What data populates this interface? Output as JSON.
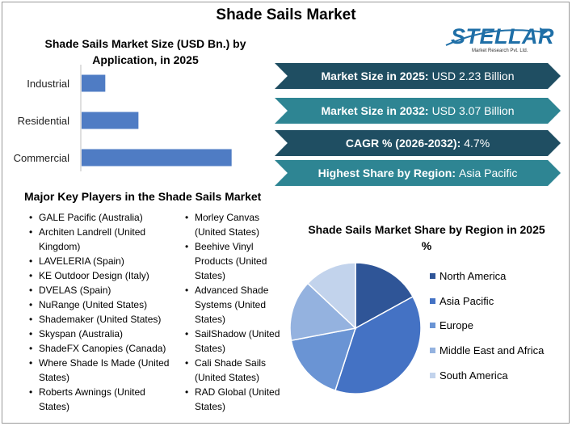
{
  "title": "Shade Sails Market",
  "logo": {
    "text": "STELLAR",
    "subtitle": "Market Research Pvt. Ltd."
  },
  "bar_chart_title": "Shade Sails Market Size (USD Bn.) by Application, in 2025",
  "banners": [
    {
      "label": "Market Size in 2025:",
      "value": "USD 2.23 Billion",
      "color": "#1f4e62"
    },
    {
      "label": "Market Size in 2032:",
      "value": "USD 3.07 Billion",
      "color": "#2e8593"
    },
    {
      "label": "CAGR % (2026-2032):",
      "value": "4.7%",
      "color": "#1f4e62"
    },
    {
      "label": "Highest Share by Region:",
      "value": "Asia Pacific",
      "color": "#2e8593"
    }
  ],
  "players_title": "Major Key Players in the Shade Sails Market",
  "players_col1": [
    "GALE Pacific (Australia)",
    "Architen Landrell (United Kingdom)",
    "LAVELERIA (Spain)",
    "KE Outdoor Design (Italy)",
    "DVELAS (Spain)",
    "NuRange (United States)",
    "Shademaker (United States)",
    "Skyspan (Australia)",
    "ShadeFX Canopies (Canada)",
    "Where Shade Is Made (United States)",
    "Roberts Awnings (United States)"
  ],
  "players_col2": [
    "Morley Canvas (United States)",
    "Beehive Vinyl Products (United States)",
    "Advanced Shade Systems (United States)",
    "SailShadow (United States)",
    "Cali Shade Sails (United States)",
    "RAD Global (United States)"
  ],
  "pie_chart_title": "Shade Sails Market Share by Region in 2025 %",
  "chart_data": [
    {
      "type": "bar",
      "orientation": "horizontal",
      "title": "Shade Sails Market Size (USD Bn.) by Application, in 2025",
      "categories": [
        "Industrial",
        "Residential",
        "Commercial"
      ],
      "values": [
        0.15,
        0.36,
        0.95
      ],
      "xlim": [
        0,
        1.1
      ],
      "axis_ticks": false,
      "color": "#4f7cc4"
    },
    {
      "type": "pie",
      "title": "Shade Sails Market Share by Region in 2025 %",
      "labels": [
        "North America",
        "Asia Pacific",
        "Europe",
        "Middle East and Africa",
        "South America"
      ],
      "values": [
        17,
        38,
        17,
        15,
        13
      ],
      "colors": [
        "#2f5597",
        "#4472c4",
        "#6a94d4",
        "#94b2df",
        "#c2d3ec"
      ],
      "legend": "right"
    }
  ]
}
